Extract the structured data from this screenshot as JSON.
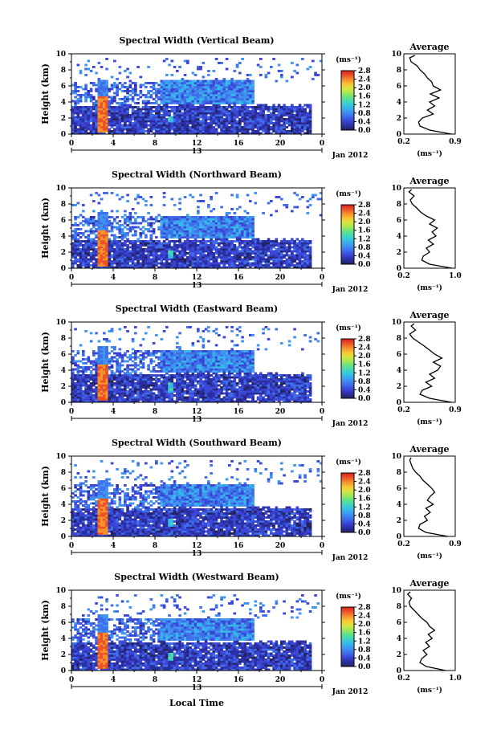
{
  "figure": {
    "date_label": "Jan 2012",
    "xlabel": "Local Time",
    "ylabel": "Height (km)",
    "colorbar_unit": "(ms⁻¹)",
    "colorbar_ticks": [
      "0.0",
      "0.4",
      "0.8",
      "1.2",
      "1.6",
      "2.0",
      "2.4",
      "2.8"
    ],
    "average_title": "Average",
    "average_unit": "(ms⁻¹)"
  },
  "colormap": [
    "#23235a",
    "#2b2ea0",
    "#3b46d6",
    "#3f6ee8",
    "#3f94f0",
    "#36b8ea",
    "#3fd4c4",
    "#5ce08c",
    "#9ce65a",
    "#d6e642",
    "#f6c834",
    "#f6902c",
    "#ec5228",
    "#d62020"
  ],
  "chart_data": [
    {
      "type": "heatmap",
      "title": "Spectral Width (Vertical Beam)",
      "x_ticks": [
        "0",
        "4",
        "8",
        "12",
        "16",
        "20",
        "0"
      ],
      "x_sub_label": "13",
      "y_ticks": [
        "0",
        "2",
        "4",
        "6",
        "8",
        "10"
      ],
      "xlim": [
        0,
        24
      ],
      "ylim": [
        0,
        10
      ],
      "ylabel": "Height (km)",
      "colorbar": {
        "min": 0.0,
        "max": 2.8
      },
      "features": [
        {
          "name": "convective-column",
          "x": [
            2.6,
            3.4
          ],
          "y": [
            0.3,
            6.8
          ],
          "core_value": 2.6
        },
        {
          "name": "surface-spot",
          "x": [
            9.2,
            9.8
          ],
          "y": [
            1.4,
            2.3
          ],
          "core_value": 1.5
        },
        {
          "name": "stratiform-layer",
          "x": [
            8.5,
            17.5
          ],
          "y": [
            3.5,
            6.8
          ],
          "core_value": 1.0
        }
      ],
      "average_profile": {
        "xlim": [
          0.2,
          0.9
        ],
        "x_ticks": [
          "0.2",
          "0.9"
        ],
        "height_km": [
          0.0,
          0.5,
          1.0,
          1.5,
          2.0,
          2.5,
          3.0,
          3.5,
          4.0,
          4.5,
          5.0,
          5.5,
          6.0,
          6.5,
          7.0,
          7.5,
          8.0,
          8.5,
          9.0,
          9.5,
          9.8
        ],
        "width_ms": [
          0.85,
          0.55,
          0.42,
          0.4,
          0.45,
          0.6,
          0.52,
          0.62,
          0.55,
          0.68,
          0.56,
          0.7,
          0.6,
          0.58,
          0.52,
          0.48,
          0.42,
          0.38,
          0.3,
          0.28,
          0.35
        ]
      }
    },
    {
      "type": "heatmap",
      "title": "Spectral Width (Northward Beam)",
      "x_ticks": [
        "0",
        "4",
        "8",
        "12",
        "16",
        "20",
        "0"
      ],
      "x_sub_label": "13",
      "y_ticks": [
        "0",
        "2",
        "4",
        "6",
        "8",
        "10"
      ],
      "xlim": [
        0,
        24
      ],
      "ylim": [
        0,
        10
      ],
      "ylabel": "Height (km)",
      "colorbar": {
        "min": 0.0,
        "max": 2.8
      },
      "features": [
        {
          "name": "convective-column",
          "x": [
            2.6,
            3.4
          ],
          "y": [
            0.2,
            7.0
          ],
          "core_value": 2.6
        },
        {
          "name": "surface-spot",
          "x": [
            9.2,
            9.8
          ],
          "y": [
            1.2,
            2.2
          ],
          "core_value": 1.5
        },
        {
          "name": "stratiform-layer",
          "x": [
            8.5,
            17.5
          ],
          "y": [
            3.8,
            6.5
          ],
          "core_value": 1.0
        }
      ],
      "average_profile": {
        "xlim": [
          0.2,
          1.0
        ],
        "x_ticks": [
          "0.2",
          "1.0"
        ],
        "height_km": [
          0.0,
          0.5,
          1.0,
          1.5,
          2.0,
          2.5,
          3.0,
          3.5,
          4.0,
          4.5,
          5.0,
          5.5,
          6.0,
          6.5,
          7.0,
          7.5,
          8.0,
          8.5,
          9.0,
          9.5,
          9.8
        ],
        "width_ms": [
          0.95,
          0.6,
          0.48,
          0.5,
          0.6,
          0.55,
          0.66,
          0.58,
          0.7,
          0.64,
          0.72,
          0.6,
          0.68,
          0.55,
          0.46,
          0.4,
          0.33,
          0.3,
          0.36,
          0.28,
          0.32
        ]
      }
    },
    {
      "type": "heatmap",
      "title": "Spectral Width (Eastward Beam)",
      "x_ticks": [
        "0",
        "4",
        "8",
        "12",
        "16",
        "20",
        "0"
      ],
      "x_sub_label": "13",
      "y_ticks": [
        "0",
        "2",
        "4",
        "6",
        "8",
        "10"
      ],
      "xlim": [
        0,
        24
      ],
      "ylim": [
        0,
        10
      ],
      "ylabel": "Height (km)",
      "colorbar": {
        "min": 0.0,
        "max": 2.8
      },
      "features": [
        {
          "name": "convective-column",
          "x": [
            2.6,
            3.4
          ],
          "y": [
            0.2,
            7.0
          ],
          "core_value": 2.6
        },
        {
          "name": "surface-spot",
          "x": [
            9.2,
            9.8
          ],
          "y": [
            1.2,
            2.4
          ],
          "core_value": 1.5
        },
        {
          "name": "stratiform-layer",
          "x": [
            8.5,
            17.5
          ],
          "y": [
            3.8,
            6.5
          ],
          "core_value": 1.0
        }
      ],
      "average_profile": {
        "xlim": [
          0.2,
          0.9
        ],
        "x_ticks": [
          "0.2",
          "0.9"
        ],
        "height_km": [
          0.0,
          0.5,
          1.0,
          1.5,
          2.0,
          2.5,
          3.0,
          3.5,
          4.0,
          4.5,
          5.0,
          5.5,
          6.0,
          6.5,
          7.0,
          7.5,
          8.0,
          8.5,
          9.0,
          9.5,
          9.8
        ],
        "width_ms": [
          0.85,
          0.55,
          0.42,
          0.45,
          0.58,
          0.5,
          0.62,
          0.55,
          0.66,
          0.7,
          0.6,
          0.72,
          0.62,
          0.55,
          0.48,
          0.4,
          0.32,
          0.28,
          0.36,
          0.3,
          0.34
        ]
      }
    },
    {
      "type": "heatmap",
      "title": "Spectral Width (Southward Beam)",
      "x_ticks": [
        "0",
        "4",
        "8",
        "12",
        "16",
        "20",
        "0"
      ],
      "x_sub_label": "13",
      "y_ticks": [
        "0",
        "2",
        "4",
        "6",
        "8",
        "10"
      ],
      "xlim": [
        0,
        24
      ],
      "ylim": [
        0,
        10
      ],
      "ylabel": "Height (km)",
      "colorbar": {
        "min": 0.0,
        "max": 2.8
      },
      "features": [
        {
          "name": "convective-column",
          "x": [
            2.6,
            3.4
          ],
          "y": [
            0.2,
            7.0
          ],
          "core_value": 2.6
        },
        {
          "name": "surface-spot",
          "x": [
            9.2,
            9.8
          ],
          "y": [
            1.3,
            2.3
          ],
          "core_value": 1.5
        },
        {
          "name": "stratiform-layer",
          "x": [
            8.5,
            17.5
          ],
          "y": [
            3.8,
            6.5
          ],
          "core_value": 1.0
        }
      ],
      "average_profile": {
        "xlim": [
          0.2,
          0.9
        ],
        "x_ticks": [
          "0.2",
          "0.9"
        ],
        "height_km": [
          0.0,
          0.5,
          1.0,
          1.5,
          2.0,
          2.5,
          3.0,
          3.5,
          4.0,
          4.5,
          5.0,
          5.5,
          6.0,
          6.5,
          7.0,
          7.5,
          8.0,
          8.5,
          9.0,
          9.5,
          9.8
        ],
        "width_ms": [
          0.8,
          0.5,
          0.4,
          0.42,
          0.52,
          0.48,
          0.56,
          0.5,
          0.6,
          0.52,
          0.56,
          0.62,
          0.58,
          0.52,
          0.46,
          0.42,
          0.36,
          0.32,
          0.3,
          0.28,
          0.3
        ]
      }
    },
    {
      "type": "heatmap",
      "title": "Spectral Width (Westward Beam)",
      "x_ticks": [
        "0",
        "4",
        "8",
        "12",
        "16",
        "20",
        "0"
      ],
      "x_sub_label": "13",
      "y_ticks": [
        "0",
        "2",
        "4",
        "6",
        "8",
        "10"
      ],
      "xlim": [
        0,
        24
      ],
      "ylim": [
        0,
        10
      ],
      "ylabel": "Height (km)",
      "colorbar": {
        "min": 0.0,
        "max": 2.8
      },
      "features": [
        {
          "name": "convective-column",
          "x": [
            2.6,
            3.4
          ],
          "y": [
            0.2,
            7.0
          ],
          "core_value": 2.6
        },
        {
          "name": "surface-spot",
          "x": [
            9.2,
            9.8
          ],
          "y": [
            1.2,
            2.2
          ],
          "core_value": 1.5
        },
        {
          "name": "stratiform-layer",
          "x": [
            8.5,
            17.5
          ],
          "y": [
            3.8,
            6.5
          ],
          "core_value": 1.0
        }
      ],
      "average_profile": {
        "xlim": [
          0.2,
          1.0
        ],
        "x_ticks": [
          "0.2",
          "1.0"
        ],
        "height_km": [
          0.0,
          0.5,
          1.0,
          1.5,
          2.0,
          2.5,
          3.0,
          3.5,
          4.0,
          4.5,
          5.0,
          5.5,
          6.0,
          6.5,
          7.0,
          7.5,
          8.0,
          8.5,
          9.0,
          9.5,
          9.8
        ],
        "width_ms": [
          0.85,
          0.55,
          0.45,
          0.48,
          0.56,
          0.5,
          0.6,
          0.54,
          0.64,
          0.58,
          0.68,
          0.6,
          0.56,
          0.48,
          0.42,
          0.36,
          0.3,
          0.28,
          0.32,
          0.26,
          0.3
        ]
      }
    }
  ]
}
